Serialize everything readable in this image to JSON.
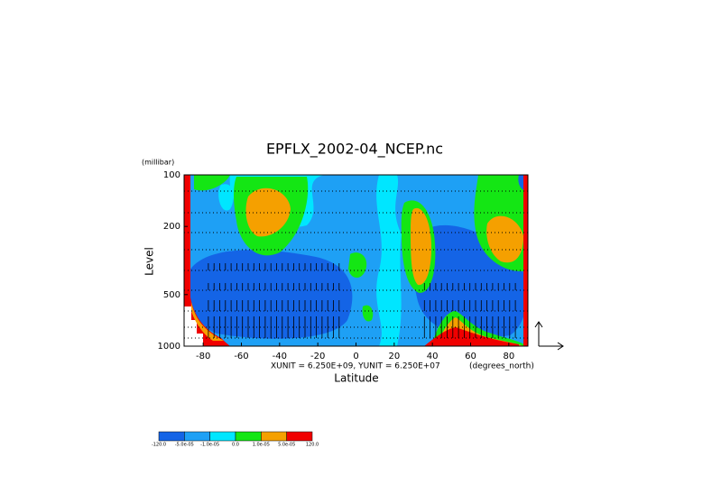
{
  "chart_data": {
    "type": "contour",
    "title": "EPFLX_2002-04_NCEP.nc",
    "y_unit": "(millibar)",
    "y_label": "Level",
    "x_label": "Latitude",
    "annotation": "XUNIT = 6.250E+09, YUNIT = 6.250E+07",
    "x_unit": "(degrees_north)",
    "xlim": [
      -90,
      90
    ],
    "xticks": [
      -80,
      -60,
      -40,
      -20,
      0,
      20,
      40,
      60,
      80
    ],
    "ylim": [
      1000,
      100
    ],
    "yticks": [
      100,
      200,
      500,
      1000
    ],
    "y_log": true,
    "colorbar": {
      "levels": [
        {
          "value": -120,
          "label": "-120.0"
        },
        {
          "value": -5e-05,
          "label": "-5.0e-05"
        },
        {
          "value": -1e-05,
          "label": "-1.0e-05"
        },
        {
          "value": 0,
          "label": "0.0"
        },
        {
          "value": 1e-05,
          "label": "1.0e-05"
        },
        {
          "value": 5e-05,
          "label": "5.0e-05"
        },
        {
          "value": 120,
          "label": "120.0"
        }
      ],
      "colors": [
        "#1464e6",
        "#1ea0f5",
        "#00e6ff",
        "#14e614",
        "#f5a000",
        "#f00000"
      ]
    }
  }
}
